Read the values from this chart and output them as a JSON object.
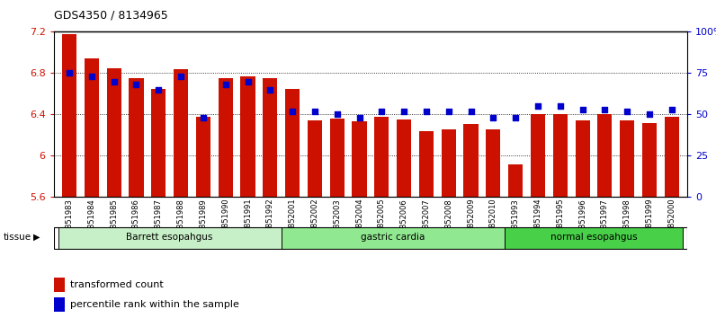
{
  "title": "GDS4350 / 8134965",
  "samples": [
    "GSM851983",
    "GSM851984",
    "GSM851985",
    "GSM851986",
    "GSM851987",
    "GSM851988",
    "GSM851989",
    "GSM851990",
    "GSM851991",
    "GSM851992",
    "GSM852001",
    "GSM852002",
    "GSM852003",
    "GSM852004",
    "GSM852005",
    "GSM852006",
    "GSM852007",
    "GSM852008",
    "GSM852009",
    "GSM852010",
    "GSM851993",
    "GSM851994",
    "GSM851995",
    "GSM851996",
    "GSM851997",
    "GSM851998",
    "GSM851999",
    "GSM852000"
  ],
  "bar_values": [
    7.18,
    6.94,
    6.85,
    6.75,
    6.65,
    6.84,
    6.38,
    6.75,
    6.77,
    6.75,
    6.65,
    6.34,
    6.36,
    6.33,
    6.38,
    6.35,
    6.24,
    6.26,
    6.31,
    6.26,
    5.92,
    6.4,
    6.4,
    6.34,
    6.4,
    6.34,
    6.32,
    6.38
  ],
  "percentile_values": [
    75,
    73,
    70,
    68,
    65,
    73,
    48,
    68,
    70,
    65,
    52,
    52,
    50,
    48,
    52,
    52,
    52,
    52,
    52,
    48,
    48,
    55,
    55,
    53,
    53,
    52,
    50,
    53
  ],
  "groups": [
    {
      "label": "Barrett esopahgus",
      "start": 0,
      "end": 10,
      "color": "#c8f0c8"
    },
    {
      "label": "gastric cardia",
      "start": 10,
      "end": 20,
      "color": "#90e890"
    },
    {
      "label": "normal esopahgus",
      "start": 20,
      "end": 28,
      "color": "#48d048"
    }
  ],
  "ymin": 5.6,
  "ymax": 7.2,
  "yticks": [
    5.6,
    6.0,
    6.4,
    6.8,
    7.2
  ],
  "ytick_labels": [
    "5.6",
    "6",
    "6.4",
    "6.8",
    "7.2"
  ],
  "y2ticks": [
    0,
    25,
    50,
    75,
    100
  ],
  "y2tick_labels": [
    "0",
    "25",
    "50",
    "75",
    "100%"
  ],
  "bar_color": "#cc1100",
  "dot_color": "#0000cc",
  "bar_width": 0.65,
  "legend_items": [
    {
      "label": "transformed count",
      "color": "#cc1100"
    },
    {
      "label": "percentile rank within the sample",
      "color": "#0000cc"
    }
  ]
}
